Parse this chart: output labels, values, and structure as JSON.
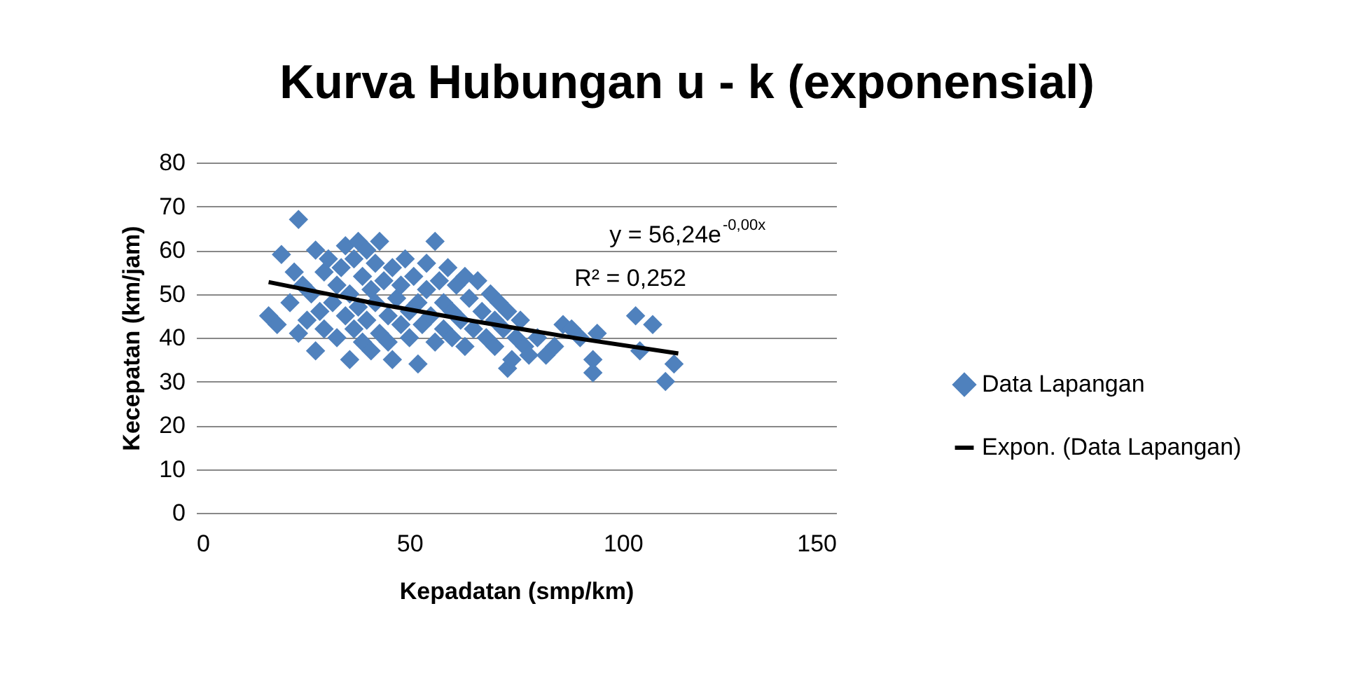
{
  "chart_data": {
    "type": "scatter",
    "title": "Kurva Hubungan u - k (exponensial)",
    "xlabel": "Kepadatan (smp/km)",
    "ylabel": "Kecepatan (km/jam)",
    "xlim": [
      0,
      150
    ],
    "xticks": [
      0,
      50,
      100,
      150
    ],
    "ylim": [
      0,
      80
    ],
    "yticks": [
      0,
      10,
      20,
      30,
      40,
      50,
      60,
      70,
      80
    ],
    "grid": "y",
    "legend": "right",
    "marker": "diamond",
    "annotations": [
      "y = 56,24e$^{-0,00x}$",
      "R² = 0,252"
    ],
    "series": [
      {
        "name": "Data Lapangan",
        "type": "scatter",
        "color": "#4f81bd",
        "x": [
          17,
          19,
          20,
          22,
          23,
          24,
          24,
          25,
          26,
          27,
          28,
          28,
          29,
          30,
          30,
          31,
          32,
          33,
          33,
          34,
          35,
          35,
          36,
          36,
          37,
          37,
          38,
          38,
          39,
          39,
          40,
          40,
          41,
          41,
          42,
          42,
          43,
          43,
          44,
          45,
          45,
          46,
          46,
          47,
          48,
          48,
          49,
          50,
          50,
          51,
          52,
          52,
          53,
          54,
          54,
          55,
          56,
          56,
          57,
          58,
          58,
          59,
          60,
          60,
          61,
          62,
          63,
          63,
          64,
          65,
          66,
          67,
          68,
          69,
          70,
          70,
          71,
          72,
          73,
          73,
          74,
          75,
          76,
          77,
          78,
          80,
          82,
          84,
          86,
          88,
          90,
          93,
          93,
          94,
          103,
          104,
          107,
          110,
          112
        ],
        "values": [
          45,
          43,
          59,
          48,
          55,
          67,
          41,
          52,
          44,
          50,
          60,
          37,
          46,
          55,
          42,
          58,
          48,
          52,
          40,
          56,
          61,
          45,
          35,
          50,
          58,
          42,
          62,
          47,
          39,
          54,
          60,
          44,
          51,
          37,
          57,
          48,
          62,
          41,
          53,
          45,
          39,
          56,
          35,
          49,
          43,
          52,
          58,
          46,
          40,
          54,
          34,
          48,
          43,
          57,
          51,
          45,
          62,
          39,
          53,
          48,
          42,
          56,
          46,
          40,
          52,
          44,
          54,
          38,
          49,
          42,
          53,
          46,
          40,
          50,
          44,
          38,
          48,
          42,
          33,
          46,
          35,
          40,
          44,
          38,
          36,
          40,
          36,
          38,
          43,
          42,
          40,
          35,
          32,
          41,
          45,
          37,
          43,
          30,
          34
        ]
      },
      {
        "name": "Expon. (Data Lapangan)",
        "type": "line",
        "color": "#000000",
        "marker": "none",
        "x": [
          17,
          41,
          65,
          89,
          113
        ],
        "values": [
          52.7,
          48.0,
          43.8,
          39.9,
          36.4
        ]
      }
    ]
  }
}
